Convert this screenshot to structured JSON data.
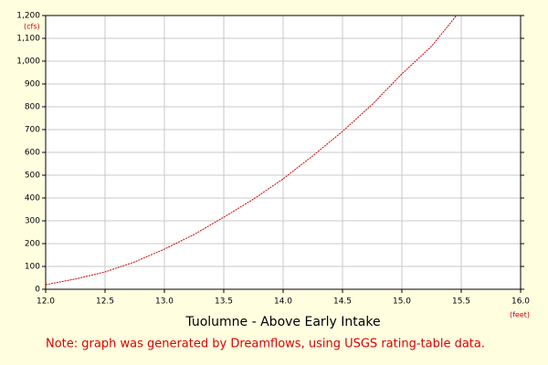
{
  "chart_data": {
    "type": "line",
    "title": "Tuolumne - Above Early Intake",
    "y_unit": "(cfs)",
    "x_unit": "(feet)",
    "note": "Note: graph was generated by Dreamflows, using USGS rating-table data.",
    "x": [
      12.0,
      12.25,
      12.5,
      12.75,
      13.0,
      13.25,
      13.5,
      13.75,
      14.0,
      14.25,
      14.5,
      14.75,
      15.0,
      15.25,
      15.46
    ],
    "series": [
      {
        "color": "#cc0000",
        "values": [
          20,
          45,
          76,
          120,
          176,
          240,
          316,
          395,
          484,
          585,
          692,
          810,
          944,
          1065,
          1200
        ]
      }
    ],
    "xlim": [
      12.0,
      16.0
    ],
    "xticks": [
      {
        "value": 12,
        "label": "12.0"
      },
      12.5,
      {
        "value": 13,
        "label": "13.0"
      },
      13.5,
      {
        "value": 14,
        "label": "14.0"
      },
      14.5,
      {
        "value": 15,
        "label": "15.0"
      },
      15.5,
      {
        "value": 16,
        "label": "16.0"
      }
    ],
    "ylim": [
      0,
      1200
    ],
    "yticks": [
      0,
      100,
      200,
      300,
      400,
      500,
      600,
      700,
      800,
      900,
      {
        "value": 1000,
        "label": "1,000"
      },
      {
        "value": 1100,
        "label": "1,100"
      },
      {
        "value": 1200,
        "label": "1,200"
      }
    ],
    "grid": true
  }
}
